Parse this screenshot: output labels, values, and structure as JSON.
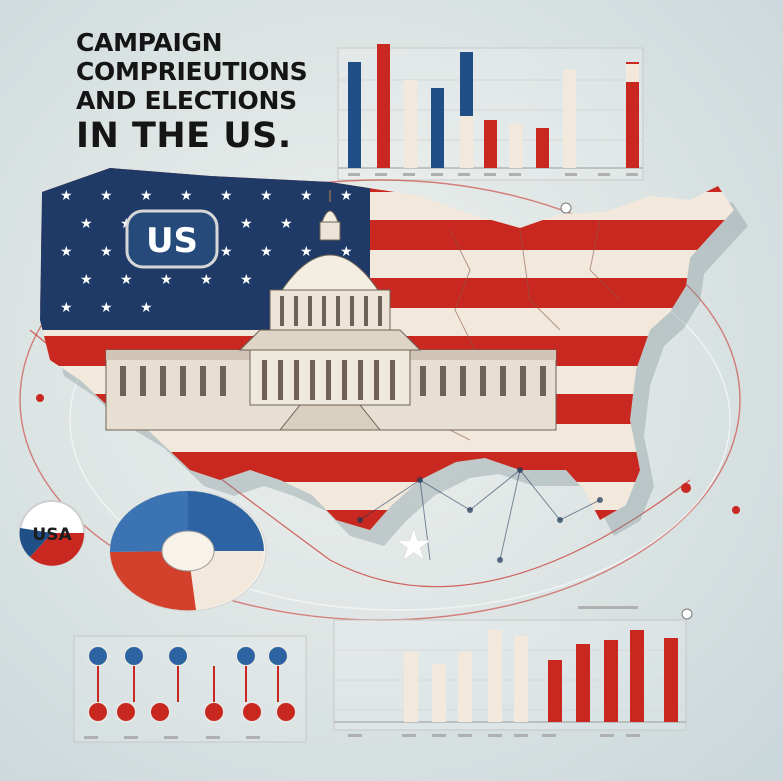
{
  "title": {
    "line1": "CAMPAIGN",
    "line2": "COMPRIEUTIONS",
    "line3": "AND ELECTIONS",
    "line4": "IN THE US."
  },
  "map_badge": "US",
  "pie_badge": "USA",
  "colors": {
    "red": "#c8281f",
    "blue": "#1f4f86",
    "cream": "#f2e9dc",
    "navy": "#1d3557"
  },
  "icons": [
    "capitol-icon",
    "star-icon",
    "flag-icon"
  ]
}
